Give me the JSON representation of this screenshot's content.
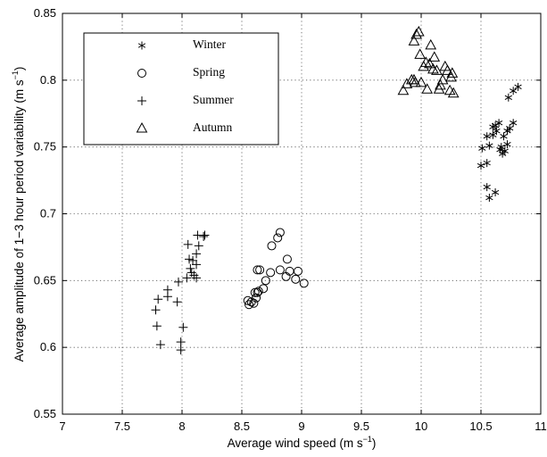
{
  "chart_data": {
    "type": "scatter",
    "title": "",
    "xlabel": "Average wind speed (m s",
    "xlabel_sup": "−1",
    "xlabel_end": ")",
    "ylabel": "Average amplitude of 1−3 hour period variability (m s",
    "ylabel_sup": "−1",
    "ylabel_end": ")",
    "xlim": [
      7,
      11
    ],
    "ylim": [
      0.55,
      0.85
    ],
    "xticks": [
      7,
      7.5,
      8,
      8.5,
      9,
      9.5,
      10,
      10.5,
      11
    ],
    "yticks": [
      0.55,
      0.6,
      0.65,
      0.7,
      0.75,
      0.8,
      0.85
    ],
    "xtick_labels": [
      "7",
      "7.5",
      "8",
      "8.5",
      "9",
      "9.5",
      "10",
      "10.5",
      "11"
    ],
    "ytick_labels": [
      "0.55",
      "0.6",
      "0.65",
      "0.7",
      "0.75",
      "0.8",
      "0.85"
    ],
    "grid": true,
    "legend_position": "top-left",
    "series": [
      {
        "name": "Winter",
        "marker": "asterisk",
        "points": [
          [
            10.5,
            0.736
          ],
          [
            10.55,
            0.738
          ],
          [
            10.51,
            0.749
          ],
          [
            10.57,
            0.751
          ],
          [
            10.55,
            0.758
          ],
          [
            10.6,
            0.759
          ],
          [
            10.62,
            0.766
          ],
          [
            10.65,
            0.768
          ],
          [
            10.63,
            0.762
          ],
          [
            10.66,
            0.748
          ],
          [
            10.68,
            0.745
          ],
          [
            10.7,
            0.747
          ],
          [
            10.72,
            0.752
          ],
          [
            10.69,
            0.758
          ],
          [
            10.72,
            0.762
          ],
          [
            10.74,
            0.764
          ],
          [
            10.77,
            0.768
          ],
          [
            10.73,
            0.787
          ],
          [
            10.77,
            0.792
          ],
          [
            10.81,
            0.795
          ],
          [
            10.55,
            0.72
          ],
          [
            10.57,
            0.712
          ],
          [
            10.62,
            0.716
          ],
          [
            10.6,
            0.765
          ],
          [
            10.67,
            0.75
          ]
        ]
      },
      {
        "name": "Spring",
        "marker": "circle",
        "points": [
          [
            8.55,
            0.635
          ],
          [
            8.56,
            0.632
          ],
          [
            8.58,
            0.634
          ],
          [
            8.6,
            0.633
          ],
          [
            8.62,
            0.637
          ],
          [
            8.63,
            0.641
          ],
          [
            8.61,
            0.641
          ],
          [
            8.64,
            0.642
          ],
          [
            8.65,
            0.658
          ],
          [
            8.63,
            0.658
          ],
          [
            8.68,
            0.644
          ],
          [
            8.7,
            0.65
          ],
          [
            8.74,
            0.656
          ],
          [
            8.75,
            0.676
          ],
          [
            8.8,
            0.682
          ],
          [
            8.82,
            0.686
          ],
          [
            8.82,
            0.658
          ],
          [
            8.87,
            0.653
          ],
          [
            8.88,
            0.666
          ],
          [
            8.9,
            0.657
          ],
          [
            8.97,
            0.657
          ],
          [
            8.95,
            0.651
          ],
          [
            9.02,
            0.648
          ]
        ]
      },
      {
        "name": "Summer",
        "marker": "plus",
        "points": [
          [
            7.78,
            0.628
          ],
          [
            7.8,
            0.636
          ],
          [
            7.79,
            0.616
          ],
          [
            7.82,
            0.602
          ],
          [
            7.88,
            0.643
          ],
          [
            7.88,
            0.638
          ],
          [
            7.96,
            0.634
          ],
          [
            7.97,
            0.649
          ],
          [
            7.99,
            0.604
          ],
          [
            7.99,
            0.598
          ],
          [
            8.01,
            0.615
          ],
          [
            8.04,
            0.652
          ],
          [
            8.05,
            0.677
          ],
          [
            8.06,
            0.666
          ],
          [
            8.07,
            0.659
          ],
          [
            8.08,
            0.656
          ],
          [
            8.09,
            0.665
          ],
          [
            8.1,
            0.654
          ],
          [
            8.12,
            0.662
          ],
          [
            8.12,
            0.652
          ],
          [
            8.13,
            0.684
          ],
          [
            8.14,
            0.676
          ],
          [
            8.12,
            0.67
          ],
          [
            8.18,
            0.683
          ],
          [
            8.19,
            0.684
          ]
        ]
      },
      {
        "name": "Autumn",
        "marker": "triangle",
        "points": [
          [
            9.85,
            0.792
          ],
          [
            9.88,
            0.797
          ],
          [
            9.92,
            0.8
          ],
          [
            9.94,
            0.8
          ],
          [
            9.94,
            0.829
          ],
          [
            9.96,
            0.834
          ],
          [
            9.98,
            0.836
          ],
          [
            9.99,
            0.819
          ],
          [
            10.02,
            0.81
          ],
          [
            10.04,
            0.813
          ],
          [
            10.05,
            0.793
          ],
          [
            10.07,
            0.812
          ],
          [
            10.08,
            0.826
          ],
          [
            10.1,
            0.808
          ],
          [
            10.11,
            0.817
          ],
          [
            10.13,
            0.807
          ],
          [
            10.15,
            0.793
          ],
          [
            10.16,
            0.796
          ],
          [
            10.18,
            0.8
          ],
          [
            10.2,
            0.81
          ],
          [
            10.22,
            0.807
          ],
          [
            10.24,
            0.792
          ],
          [
            10.25,
            0.802
          ],
          [
            10.26,
            0.805
          ],
          [
            10.27,
            0.79
          ],
          [
            10.0,
            0.798
          ],
          [
            9.95,
            0.798
          ]
        ]
      }
    ]
  }
}
